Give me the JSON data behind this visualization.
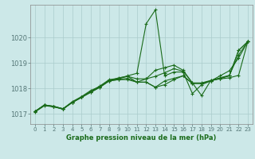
{
  "background_color": "#cce8e8",
  "grid_color": "#aacccc",
  "line_color": "#1a6b1a",
  "marker_color": "#1a6b1a",
  "title": "Graphe pression niveau de la mer (hPa)",
  "xlim": [
    -0.5,
    23.5
  ],
  "ylim": [
    1016.6,
    1021.3
  ],
  "yticks": [
    1017,
    1018,
    1019,
    1020
  ],
  "xticks": [
    0,
    1,
    2,
    3,
    4,
    5,
    6,
    7,
    8,
    9,
    10,
    11,
    12,
    13,
    14,
    15,
    16,
    17,
    18,
    19,
    20,
    21,
    22,
    23
  ],
  "series": [
    [
      1017.1,
      1017.35,
      1017.3,
      1017.2,
      1017.45,
      1017.65,
      1017.85,
      1018.05,
      1018.3,
      1018.35,
      1018.35,
      1018.25,
      1018.25,
      1018.05,
      1018.3,
      1018.4,
      1018.5,
      1018.2,
      1018.2,
      1018.3,
      1018.4,
      1018.5,
      1019.5,
      1019.85
    ],
    [
      1017.1,
      1017.35,
      1017.3,
      1017.2,
      1017.45,
      1017.65,
      1017.85,
      1018.05,
      1018.3,
      1018.35,
      1018.4,
      1018.25,
      1018.25,
      1018.05,
      1018.15,
      1018.35,
      1018.5,
      1018.2,
      1018.2,
      1018.3,
      1018.5,
      1018.7,
      1019.2,
      1019.85
    ],
    [
      1017.1,
      1017.35,
      1017.28,
      1017.2,
      1017.45,
      1017.65,
      1017.88,
      1018.1,
      1018.35,
      1018.4,
      1018.5,
      1018.6,
      1020.55,
      1021.1,
      1018.5,
      1018.65,
      1018.65,
      1017.8,
      1018.15,
      1018.3,
      1018.4,
      1018.5,
      1019.5,
      1019.85
    ],
    [
      1017.1,
      1017.35,
      1017.28,
      1017.2,
      1017.48,
      1017.68,
      1017.92,
      1018.08,
      1018.3,
      1018.42,
      1018.48,
      1018.25,
      1018.38,
      1018.72,
      1018.82,
      1018.92,
      1018.72,
      1018.22,
      1017.72,
      1018.32,
      1018.42,
      1018.52,
      1019.32,
      1019.85
    ],
    [
      1017.08,
      1017.32,
      1017.28,
      1017.18,
      1017.45,
      1017.65,
      1017.88,
      1018.08,
      1018.32,
      1018.38,
      1018.48,
      1018.38,
      1018.38,
      1018.48,
      1018.62,
      1018.78,
      1018.68,
      1018.22,
      1018.22,
      1018.32,
      1018.38,
      1018.42,
      1018.52,
      1019.85
    ]
  ]
}
